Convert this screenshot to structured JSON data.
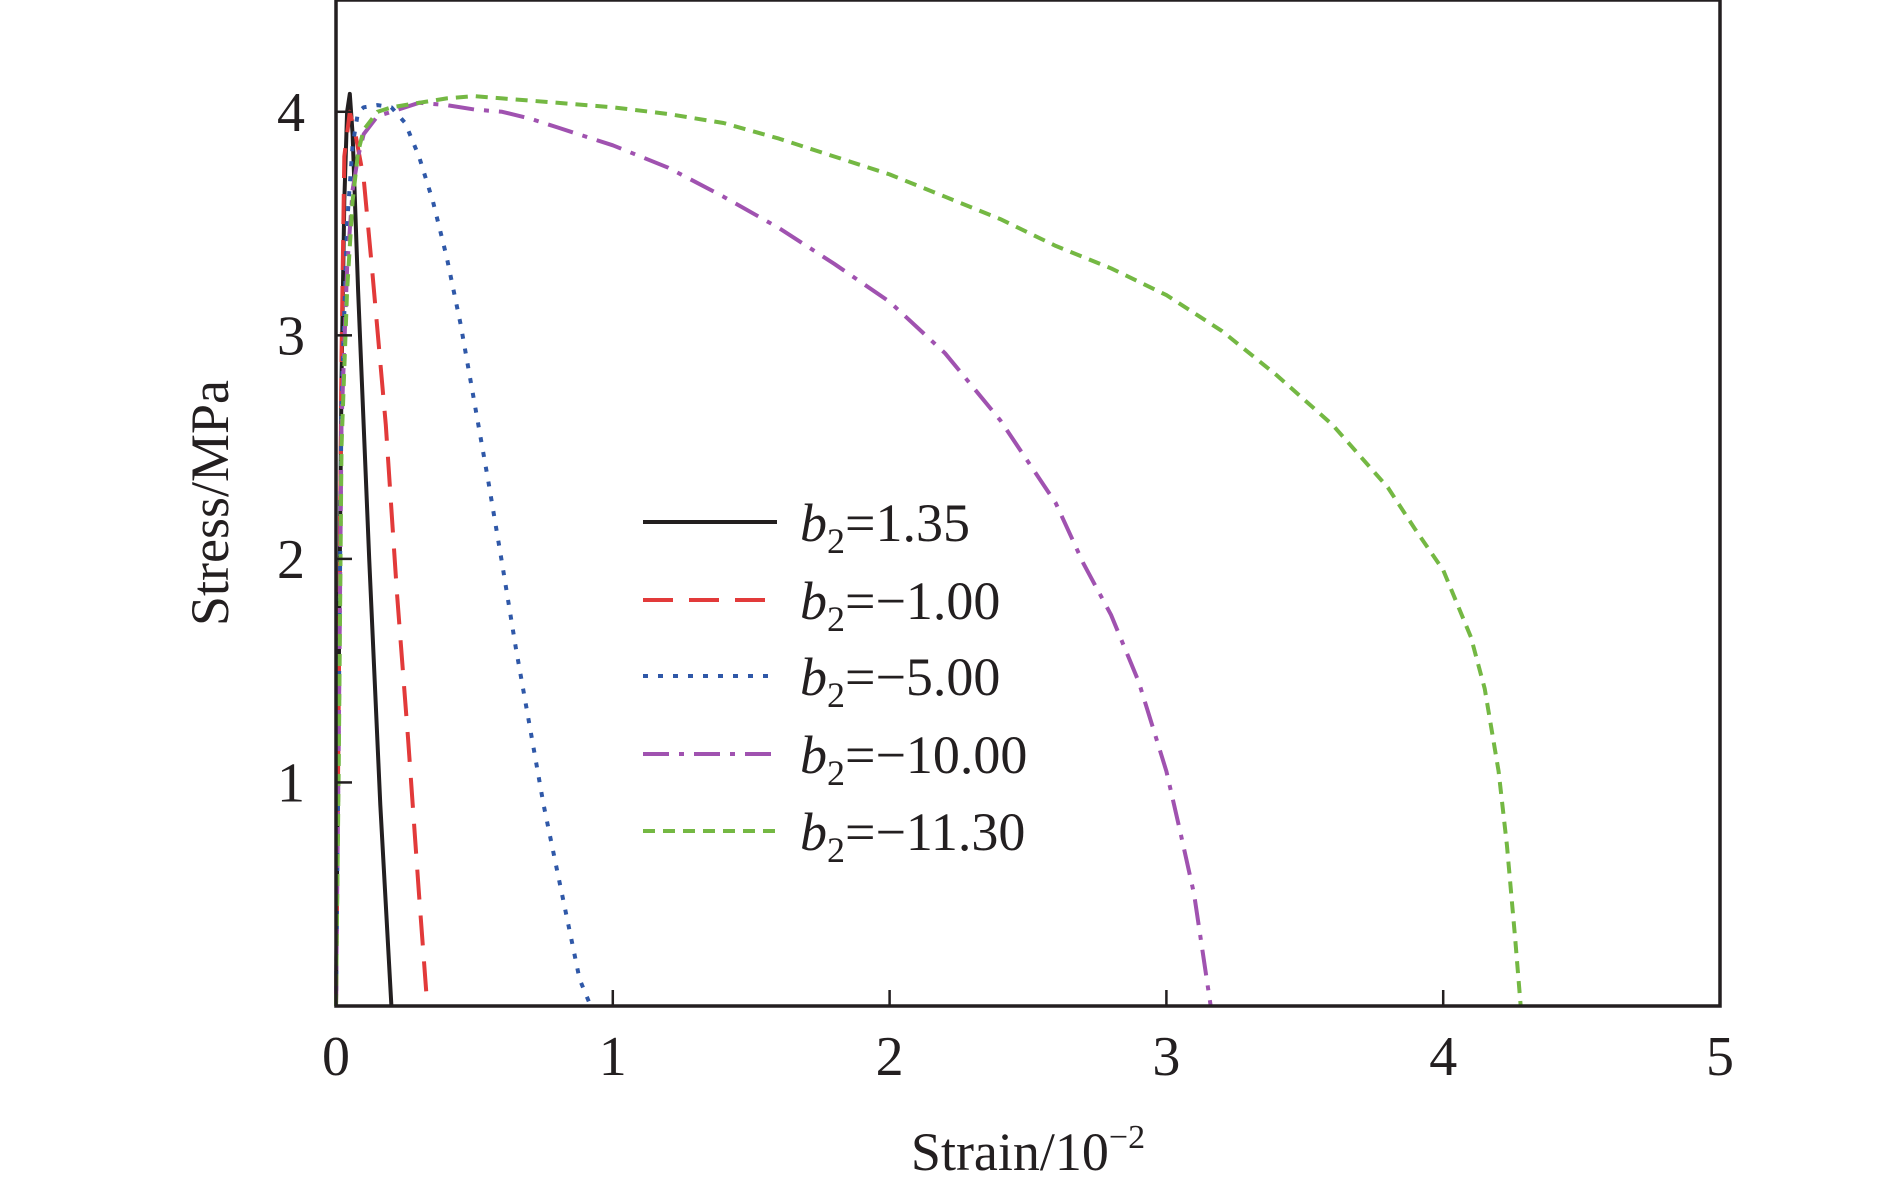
{
  "chart_data": {
    "type": "line",
    "xlabel": "Strain/10",
    "xlabel_sup": "−2",
    "ylabel": "Stress/MPa",
    "xlim": [
      0,
      5
    ],
    "ylim": [
      0,
      4.5
    ],
    "xticks": [
      0,
      1,
      2,
      3,
      4,
      5
    ],
    "xtick_labels": [
      "0",
      "1",
      "2",
      "3",
      "4",
      "5"
    ],
    "yticks": [
      1,
      2,
      3,
      4
    ],
    "ytick_labels": [
      "1",
      "2",
      "3",
      "4"
    ],
    "grid": false,
    "legend_position": "center",
    "series": [
      {
        "name_var": "b",
        "name_sub": "2",
        "name_val": "=1.35",
        "color": "#231f20",
        "dash": "solid",
        "x": [
          0.0,
          0.01,
          0.02,
          0.03,
          0.04,
          0.05,
          0.06,
          0.08,
          0.12,
          0.16,
          0.2
        ],
        "y": [
          0.0,
          1.5,
          2.8,
          3.6,
          4.0,
          4.08,
          3.9,
          3.2,
          2.0,
          0.9,
          0.0
        ]
      },
      {
        "name_var": "b",
        "name_sub": "2",
        "name_val": "=−1.00",
        "color": "#e23a3a",
        "dash": "dashed",
        "x": [
          0.0,
          0.01,
          0.02,
          0.03,
          0.05,
          0.07,
          0.1,
          0.13,
          0.18,
          0.22,
          0.26,
          0.3,
          0.33
        ],
        "y": [
          0.0,
          1.4,
          2.9,
          3.8,
          4.0,
          3.9,
          3.7,
          3.3,
          2.6,
          1.85,
          1.2,
          0.5,
          0.0
        ]
      },
      {
        "name_var": "b",
        "name_sub": "2",
        "name_val": "=−5.00",
        "color": "#2f58a8",
        "dash": "dotted",
        "x": [
          0.0,
          0.01,
          0.02,
          0.04,
          0.06,
          0.08,
          0.1,
          0.15,
          0.2,
          0.25,
          0.3,
          0.35,
          0.4,
          0.45,
          0.5,
          0.55,
          0.6,
          0.65,
          0.7,
          0.75,
          0.8,
          0.85,
          0.88,
          0.92
        ],
        "y": [
          0.0,
          1.3,
          2.7,
          3.5,
          3.85,
          4.0,
          4.02,
          4.03,
          4.02,
          3.95,
          3.8,
          3.6,
          3.35,
          3.05,
          2.7,
          2.35,
          1.98,
          1.6,
          1.25,
          0.9,
          0.6,
          0.3,
          0.12,
          0.0
        ]
      },
      {
        "name_var": "b",
        "name_sub": "2",
        "name_val": "=−10.00",
        "color": "#a052b0",
        "dash": "dashdot",
        "x": [
          0.0,
          0.01,
          0.02,
          0.04,
          0.06,
          0.08,
          0.1,
          0.15,
          0.2,
          0.3,
          0.4,
          0.5,
          0.6,
          0.7,
          0.8,
          0.9,
          1.0,
          1.2,
          1.4,
          1.6,
          1.8,
          2.0,
          2.2,
          2.4,
          2.6,
          2.7,
          2.8,
          2.9,
          2.95,
          3.0,
          3.05,
          3.1,
          3.13,
          3.16
        ],
        "y": [
          0.0,
          1.2,
          2.6,
          3.3,
          3.65,
          3.8,
          3.9,
          3.98,
          4.0,
          4.04,
          4.03,
          4.01,
          4.0,
          3.97,
          3.93,
          3.89,
          3.85,
          3.75,
          3.62,
          3.48,
          3.32,
          3.15,
          2.92,
          2.62,
          2.25,
          1.98,
          1.75,
          1.45,
          1.25,
          1.05,
          0.78,
          0.5,
          0.25,
          0.0
        ]
      },
      {
        "name_var": "b",
        "name_sub": "2",
        "name_val": "=−11.30",
        "color": "#74b843",
        "dash": "shortdash",
        "x": [
          0.0,
          0.01,
          0.02,
          0.04,
          0.06,
          0.08,
          0.1,
          0.15,
          0.2,
          0.3,
          0.4,
          0.5,
          0.6,
          0.7,
          0.8,
          1.0,
          1.2,
          1.4,
          1.6,
          1.8,
          2.0,
          2.2,
          2.4,
          2.6,
          2.8,
          3.0,
          3.2,
          3.4,
          3.6,
          3.8,
          3.9,
          4.0,
          4.1,
          4.15,
          4.2,
          4.23,
          4.26,
          4.28
        ],
        "y": [
          0.0,
          1.1,
          2.5,
          3.2,
          3.6,
          3.82,
          3.92,
          4.0,
          4.02,
          4.04,
          4.06,
          4.07,
          4.06,
          4.05,
          4.04,
          4.02,
          3.99,
          3.95,
          3.88,
          3.8,
          3.72,
          3.62,
          3.52,
          3.4,
          3.3,
          3.18,
          3.02,
          2.82,
          2.6,
          2.32,
          2.13,
          1.95,
          1.65,
          1.42,
          1.05,
          0.72,
          0.3,
          0.0
        ]
      }
    ]
  }
}
